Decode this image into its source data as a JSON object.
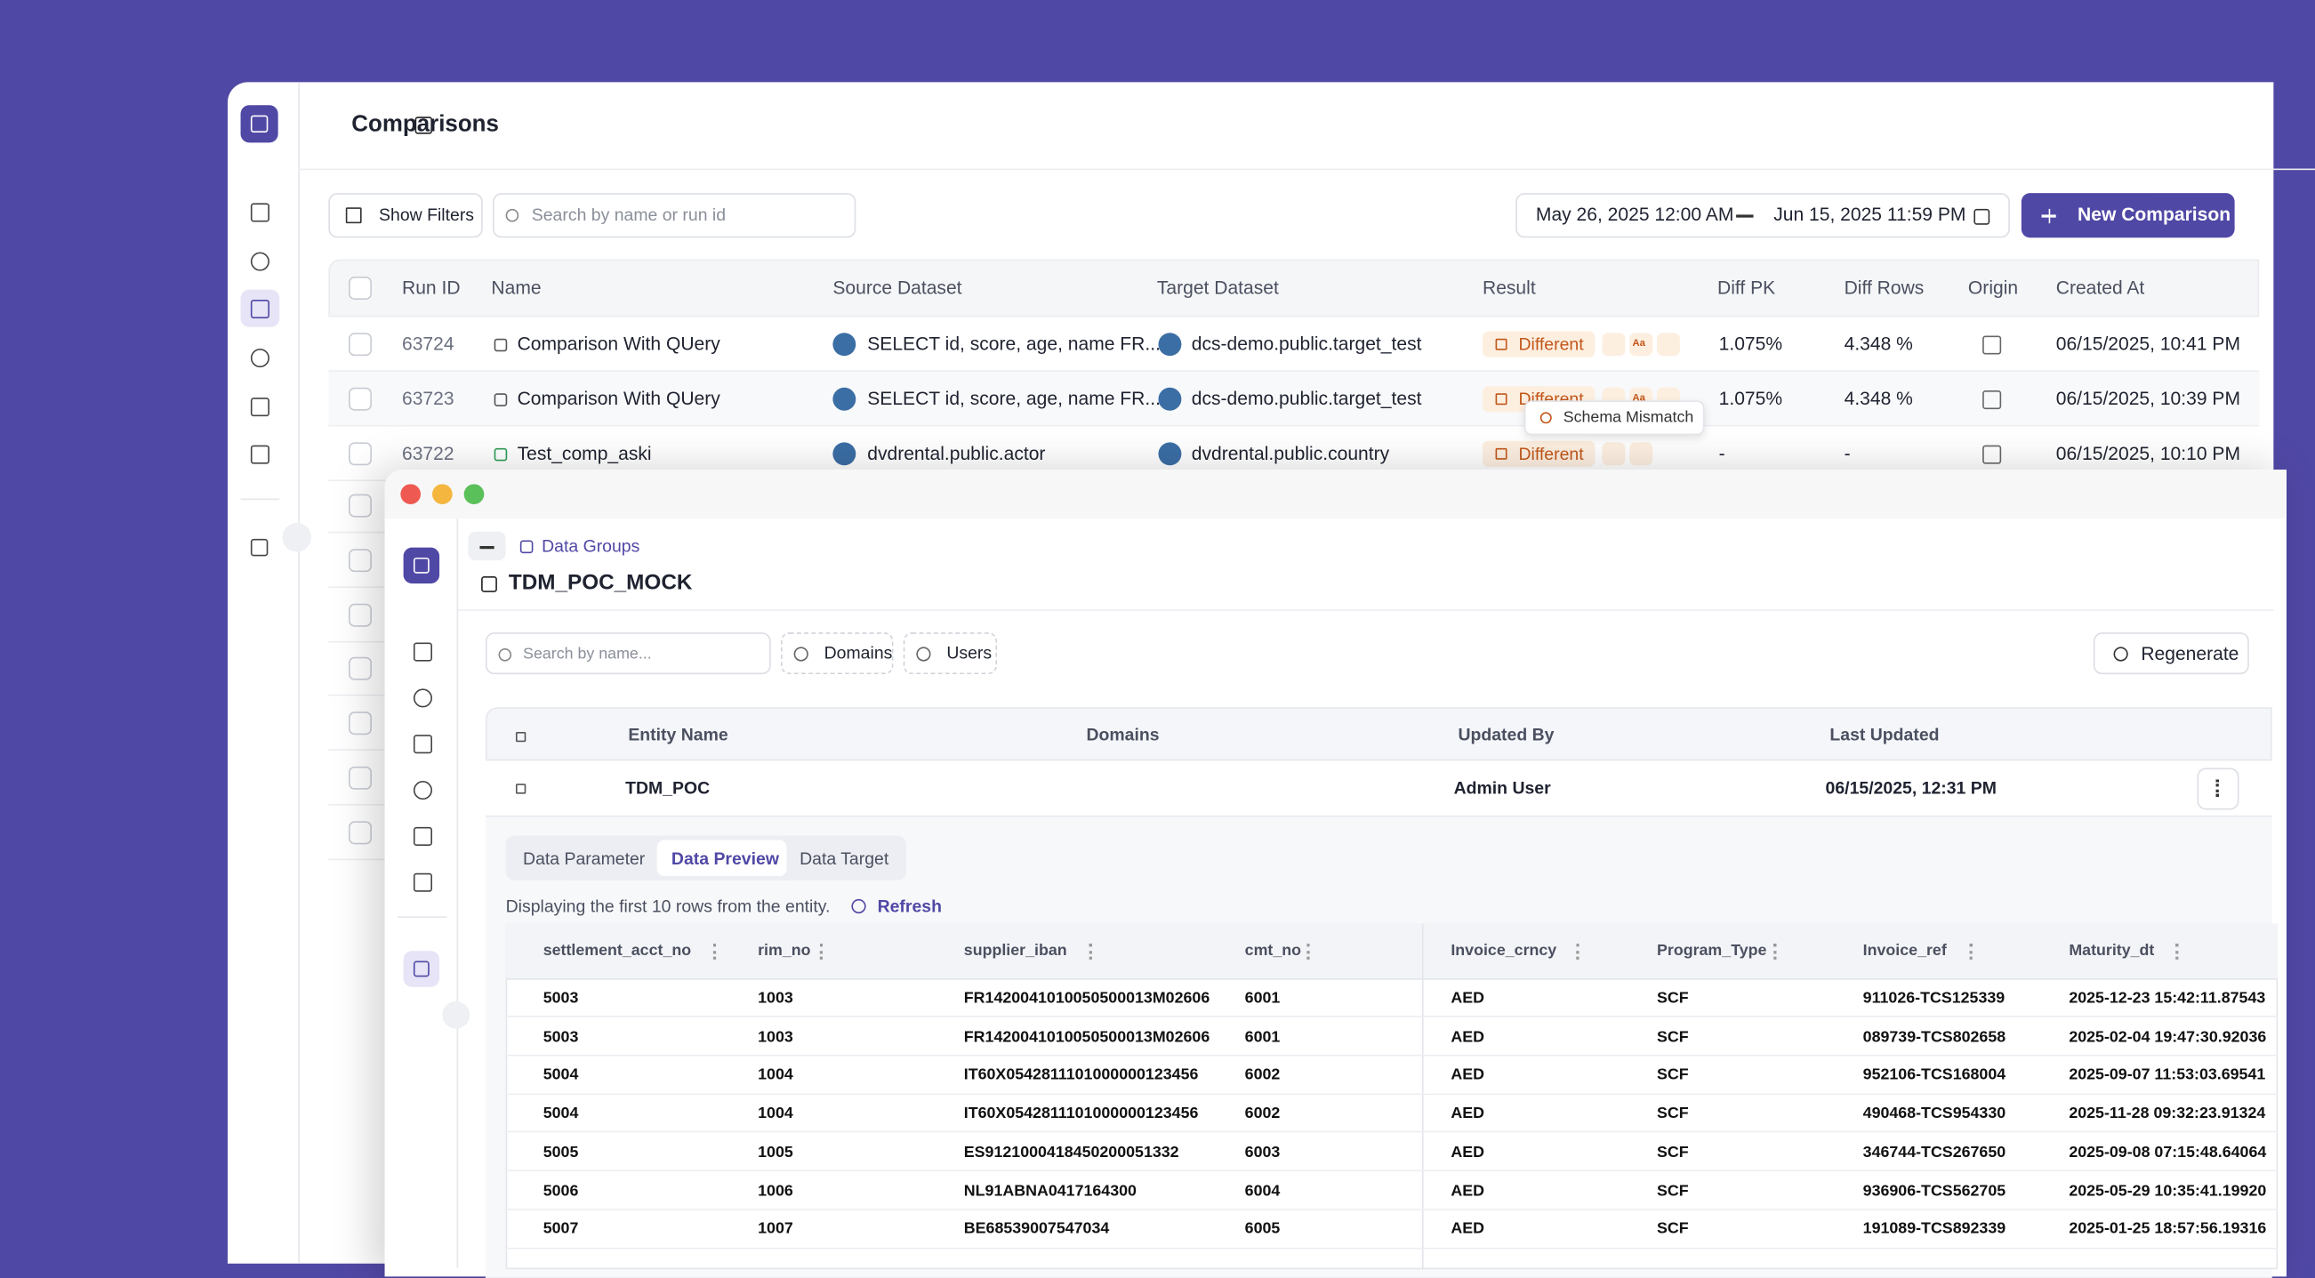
{
  "back_window": {
    "title": "Comparisons",
    "show_filters": "Show Filters",
    "search_placeholder": "Search by name or run id",
    "date_start": "May 26, 2025 12:00 AM",
    "date_end": "Jun 15, 2025 11:59 PM",
    "new_button": "New Comparison",
    "badge_text": "Aa",
    "tooltip": "Schema Mismatch",
    "table": {
      "columns": [
        "Run ID",
        "Name",
        "Source Dataset",
        "Target Dataset",
        "Result",
        "Diff PK",
        "Diff Rows",
        "Origin",
        "Created At"
      ],
      "rows": [
        [
          "63724",
          "Comparison With QUery",
          "SELECT id, score, age, name FR...",
          "dcs-demo.public.target_test",
          "Different",
          "1.075%",
          "4.348 %",
          "06/15/2025, 10:41 PM"
        ],
        [
          "63723",
          "Comparison With QUery",
          "SELECT id, score, age, name FR...",
          "dcs-demo.public.target_test",
          "Different",
          "1.075%",
          "4.348 %",
          "06/15/2025, 10:39 PM"
        ],
        [
          "63722",
          "Test_comp_aski",
          "dvdrental.public.actor",
          "dvdrental.public.country",
          "Different",
          "-",
          "-",
          "06/15/2025, 10:10 PM"
        ]
      ]
    }
  },
  "front_window": {
    "breadcrumb": "Data Groups",
    "title": "TDM_POC_MOCK",
    "search_placeholder": "Search by name...",
    "domains_button": "Domains",
    "users_button": "Users",
    "regenerate_button": "Regenerate",
    "table": {
      "columns": [
        "Entity Name",
        "Domains",
        "Updated By",
        "Last Updated"
      ],
      "row": [
        "TDM_POC",
        "Admin User",
        "06/15/2025, 12:31 PM"
      ]
    },
    "tabs": [
      "Data Parameter",
      "Data Preview",
      "Data Target"
    ],
    "note": "Displaying the first 10 rows from the entity.",
    "refresh": "Refresh",
    "grid": {
      "columns": [
        "settlement_acct_no",
        "rim_no",
        "supplier_iban",
        "cmt_no",
        "Invoice_crncy",
        "Program_Type",
        "Invoice_ref",
        "Maturity_dt"
      ],
      "rows": [
        [
          "5003",
          "1003",
          "FR1420041010050500013M02606",
          "6001",
          "AED",
          "SCF",
          "911026-TCS125339",
          "2025-12-23 15:42:11.87543"
        ],
        [
          "5003",
          "1003",
          "FR1420041010050500013M02606",
          "6001",
          "AED",
          "SCF",
          "089739-TCS802658",
          "2025-02-04 19:47:30.92036"
        ],
        [
          "5004",
          "1004",
          "IT60X0542811101000000123456",
          "6002",
          "AED",
          "SCF",
          "952106-TCS168004",
          "2025-09-07 11:53:03.69541"
        ],
        [
          "5004",
          "1004",
          "IT60X0542811101000000123456",
          "6002",
          "AED",
          "SCF",
          "490468-TCS954330",
          "2025-11-28 09:32:23.91324"
        ],
        [
          "5005",
          "1005",
          "ES9121000418450200051332",
          "6003",
          "AED",
          "SCF",
          "346744-TCS267650",
          "2025-09-08 07:15:48.64064"
        ],
        [
          "5006",
          "1006",
          "NL91ABNA0417164300",
          "6004",
          "AED",
          "SCF",
          "936906-TCS562705",
          "2025-05-29 10:35:41.19920"
        ],
        [
          "5007",
          "1007",
          "BE68539007547034",
          "6005",
          "AED",
          "SCF",
          "191089-TCS892339",
          "2025-01-25 18:57:56.19316"
        ]
      ]
    }
  }
}
